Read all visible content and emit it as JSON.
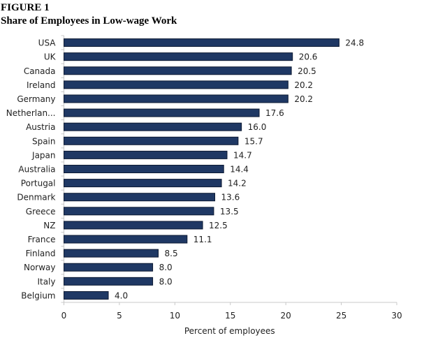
{
  "figure_label": "FIGURE 1",
  "chart_data": {
    "type": "bar",
    "orientation": "horizontal",
    "title": "Share of Employees  in Low-wage Work",
    "xlabel": "Percent of employees",
    "ylabel": "",
    "categories": [
      "USA",
      "UK",
      "Canada",
      "Ireland",
      "Germany",
      "Netherlan...",
      "Austria",
      "Spain",
      "Japan",
      "Australia",
      "Portugal",
      "Denmark",
      "Greece",
      "NZ",
      "France",
      "Finland",
      "Norway",
      "Italy",
      "Belgium"
    ],
    "values": [
      24.8,
      20.6,
      20.5,
      20.2,
      20.2,
      17.6,
      16.0,
      15.7,
      14.7,
      14.4,
      14.2,
      13.6,
      13.5,
      12.5,
      11.1,
      8.5,
      8.0,
      8.0,
      4.0
    ],
    "data_labels": [
      "24.8",
      "20.6",
      "20.5",
      "20.2",
      "20.2",
      "17.6",
      "16.0",
      "15.7",
      "14.7",
      "14.4",
      "14.2",
      "13.6",
      "13.5",
      "12.5",
      "11.1",
      "8.5",
      "8.0",
      "8.0",
      "4.0"
    ],
    "xlim": [
      0,
      30
    ],
    "xticks": [
      "0",
      "5",
      "10",
      "15",
      "20",
      "25",
      "30"
    ],
    "grid": false,
    "bar_color": "#1f3864"
  }
}
